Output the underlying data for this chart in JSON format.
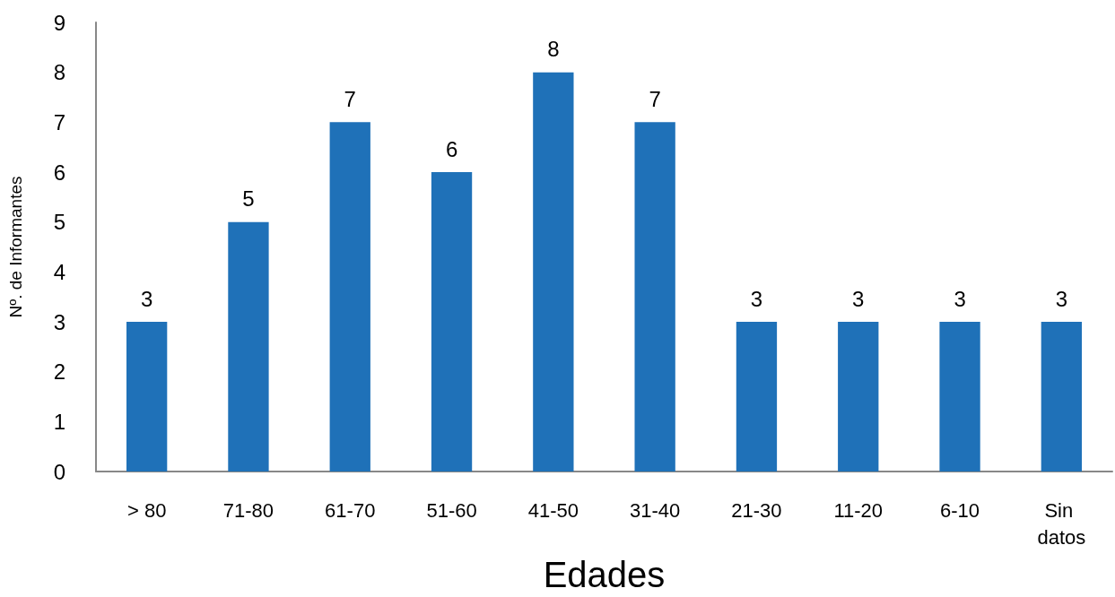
{
  "chart_data": {
    "type": "bar",
    "xlabel": "Edades",
    "ylabel": "Nº. de Informantes",
    "categories": [
      "> 80",
      "71-80",
      "61-70",
      "51-60",
      "41-50",
      "31-40",
      "21-30",
      "11-20",
      "6-10",
      "Sin datos"
    ],
    "values": [
      3,
      5,
      7,
      6,
      8,
      7,
      3,
      3,
      3,
      3
    ],
    "color": "#1f71b8",
    "ylim": [
      0,
      9
    ],
    "yticks": [
      0,
      1,
      2,
      3,
      4,
      5,
      6,
      7,
      8,
      9
    ],
    "grid": false,
    "data_labels": true
  }
}
